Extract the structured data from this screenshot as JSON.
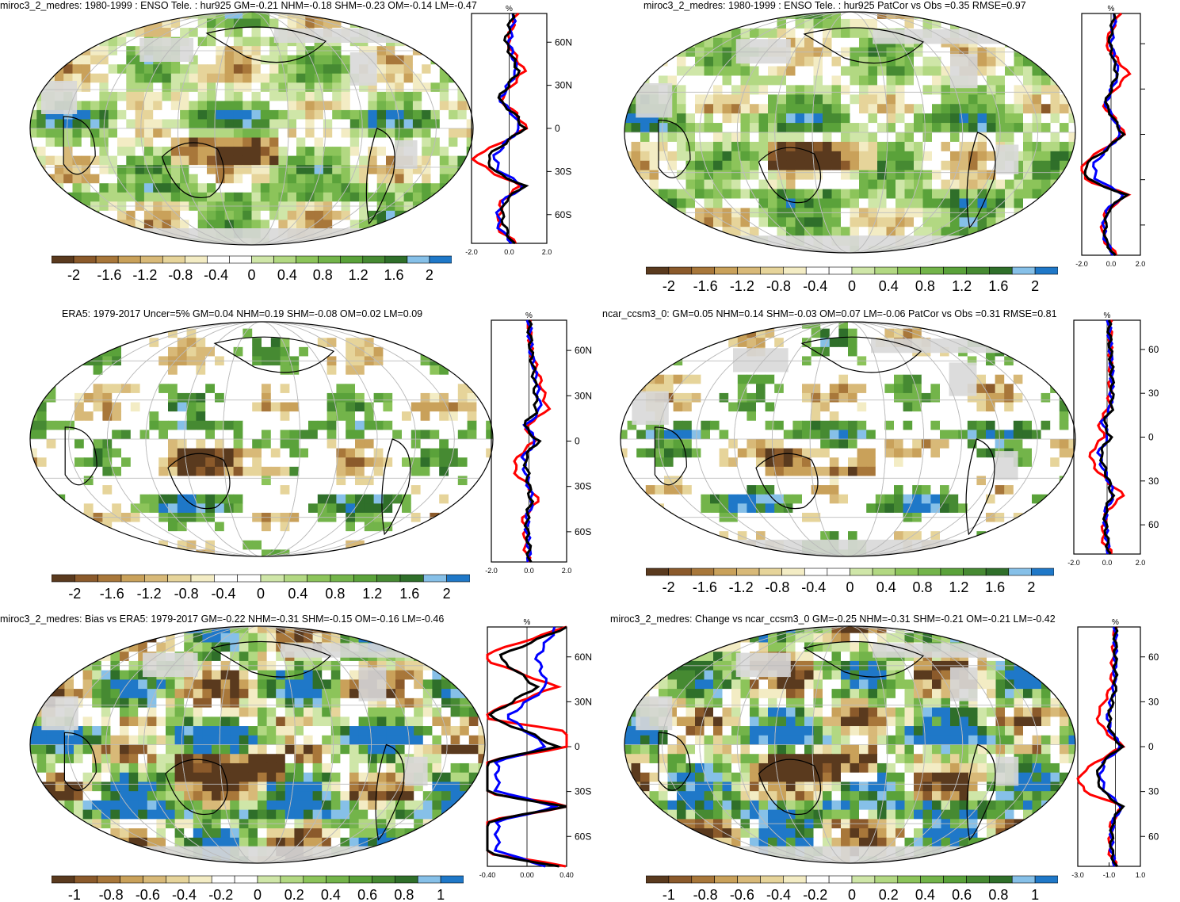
{
  "colors": {
    "brown_dark": "#5a3a1e",
    "brown": "#8b5a2b",
    "tan": "#c9a15a",
    "sand": "#e6d49a",
    "cream": "#f3ecc4",
    "white": "#ffffff",
    "light_green": "#cfe6a8",
    "green": "#8cc45a",
    "mid_green": "#5aa23a",
    "dark_green": "#2f6f2a",
    "light_blue": "#86c0e8",
    "blue": "#1f78c8",
    "land_missing": "#d8d8d8",
    "obs_line": "#000000",
    "model_line": "#ff0000",
    "other_line": "#0000ff"
  },
  "panels": [
    {
      "id": "p1",
      "title": "miroc3_2_medres: 1980-1999 : ENSO Tele. : hur925 GM=-0.21 NHM=-0.18 SHM=-0.23 OM=-0.14 LM=-0.47",
      "profile_unit": "%",
      "profile_xticks": [
        "-2.0",
        "0.0",
        "2.0"
      ],
      "profile_yticks": [
        "60N",
        "30N",
        "0",
        "30S",
        "60S"
      ],
      "colorbar_labels": [
        "-2",
        "-1.6",
        "-1.2",
        "-0.8",
        "-0.4",
        "0",
        "0.4",
        "0.8",
        "1.2",
        "1.6",
        "2"
      ]
    },
    {
      "id": "p2",
      "title": "miroc3_2_medres: 1980-1999 : ENSO Tele. : hur925 PatCor vs Obs =0.35 RMSE=0.97",
      "profile_unit": "%",
      "profile_xticks": [
        "-2.0",
        "0.0",
        "2.0"
      ],
      "profile_yticks": [
        "",
        "",
        "",
        "",
        ""
      ],
      "colorbar_labels": [
        "-2",
        "-1.6",
        "-1.2",
        "-0.8",
        "-0.4",
        "0",
        "0.4",
        "0.8",
        "1.2",
        "1.6",
        "2"
      ]
    },
    {
      "id": "p3",
      "title": "ERA5: 1979-2017 Uncer=5% GM=0.04 NHM=0.19 SHM=-0.08 OM=0.02 LM=0.09",
      "profile_unit": "%",
      "profile_xticks": [
        "-2.0",
        "0.0",
        "2.0"
      ],
      "profile_yticks": [
        "60N",
        "30N",
        "0",
        "30S",
        "60S"
      ],
      "colorbar_labels": [
        "-2",
        "-1.6",
        "-1.2",
        "-0.8",
        "-0.4",
        "0",
        "0.4",
        "0.8",
        "1.2",
        "1.6",
        "2"
      ]
    },
    {
      "id": "p4",
      "title": "ncar_ccsm3_0: GM=0.05 NHM=0.14 SHM=-0.03 OM=0.07 LM=-0.06 PatCor vs Obs =0.31 RMSE=0.81",
      "profile_unit": "%",
      "profile_xticks": [
        "-2.0",
        "0.0",
        "2.0"
      ],
      "profile_yticks": [
        "60",
        "30",
        "0",
        "30",
        "60"
      ],
      "colorbar_labels": [
        "-2",
        "-1.6",
        "-1.2",
        "-0.8",
        "-0.4",
        "0",
        "0.4",
        "0.8",
        "1.2",
        "1.6",
        "2"
      ]
    },
    {
      "id": "p5",
      "title": "miroc3_2_medres: Bias vs ERA5: 1979-2017 GM=-0.22 NHM=-0.31 SHM=-0.15 OM=-0.16 LM=-0.46",
      "profile_unit": "%",
      "profile_xticks": [
        "-0.40",
        "0.00",
        "0.40"
      ],
      "profile_yticks": [
        "60N",
        "30N",
        "0",
        "30S",
        "60S"
      ],
      "colorbar_labels": [
        "-1",
        "-0.8",
        "-0.6",
        "-0.4",
        "-0.2",
        "0",
        "0.2",
        "0.4",
        "0.6",
        "0.8",
        "1"
      ]
    },
    {
      "id": "p6",
      "title": "miroc3_2_medres: Change vs ncar_ccsm3_0 GM=-0.25 NHM=-0.31 SHM=-0.21 OM=-0.21 LM=-0.42",
      "profile_unit": "%",
      "profile_xticks": [
        "-3.0",
        "-1.0",
        "1.0"
      ],
      "profile_yticks": [
        "60",
        "30",
        "0",
        "30",
        "60"
      ],
      "colorbar_labels": [
        "-1",
        "-0.8",
        "-0.6",
        "-0.4",
        "-0.2",
        "0",
        "0.2",
        "0.4",
        "0.6",
        "0.8",
        "1"
      ]
    }
  ],
  "chart_data": [
    {
      "type": "heatmap",
      "title": "miroc3_2_medres: 1980-1999 : ENSO Tele. : hur925 GM=-0.21 NHM=-0.18 SHM=-0.23 OM=-0.14 LM=-0.47",
      "levels": [
        -2,
        -1.6,
        -1.2,
        -0.8,
        -0.4,
        0,
        0.4,
        0.8,
        1.2,
        1.6,
        2
      ],
      "zonal_profile": {
        "x_range": [
          -2,
          2
        ],
        "lat": [
          80,
          60,
          40,
          20,
          10,
          0,
          -10,
          -20,
          -30,
          -40,
          -50,
          -60,
          -70,
          -80
        ],
        "series": [
          {
            "values": [
              0.2,
              -0.2,
              0.5,
              -0.6,
              0.3,
              0.8,
              -0.2,
              -1.2,
              -0.8,
              0.8,
              -0.2,
              -0.4,
              -0.2,
              0.2
            ]
          },
          {
            "values": [
              0.4,
              -0.1,
              0.8,
              -0.5,
              0.4,
              0.9,
              -0.4,
              -2.0,
              -1.0,
              0.6,
              -0.4,
              -0.5,
              -0.6,
              0.4
            ]
          },
          {
            "values": [
              0.3,
              0.0,
              0.4,
              -0.5,
              0.2,
              0.6,
              -0.2,
              -0.8,
              -0.5,
              0.8,
              -0.3,
              -0.6,
              -0.5,
              0.2
            ]
          }
        ]
      }
    },
    {
      "type": "heatmap",
      "title": "miroc3_2_medres: 1980-1999 : ENSO Tele. : hur925 PatCor vs Obs =0.35 RMSE=0.97",
      "levels": [
        -2,
        -1.6,
        -1.2,
        -0.8,
        -0.4,
        0,
        0.4,
        0.8,
        1.2,
        1.6,
        2
      ],
      "zonal_profile": {
        "x_range": [
          -2,
          2
        ],
        "lat": [
          80,
          60,
          40,
          20,
          10,
          0,
          -10,
          -20,
          -30,
          -40,
          -50,
          -60,
          -70,
          -80
        ],
        "series": [
          {
            "values": [
              0.2,
              -0.1,
              0.4,
              -0.4,
              0.2,
              0.8,
              -0.3,
              -1.8,
              -1.6,
              1.0,
              -0.2,
              -0.4,
              -0.4,
              0.2
            ]
          },
          {
            "values": [
              0.6,
              -0.4,
              1.2,
              -0.6,
              0.3,
              0.9,
              -0.6,
              -2.0,
              -1.8,
              1.2,
              -0.3,
              -0.6,
              -0.5,
              0.4
            ]
          },
          {
            "values": [
              0.3,
              0.0,
              0.5,
              -0.4,
              0.2,
              0.7,
              -0.3,
              -1.2,
              -1.0,
              0.9,
              -0.3,
              -0.5,
              -0.4,
              0.2
            ]
          }
        ]
      }
    },
    {
      "type": "heatmap",
      "title": "ERA5: 1979-2017 Uncer=5% GM=0.04 NHM=0.19 SHM=-0.08 OM=0.02 LM=0.09",
      "levels": [
        -2,
        -1.6,
        -1.2,
        -0.8,
        -0.4,
        0,
        0.4,
        0.8,
        1.2,
        1.6,
        2
      ],
      "zonal_profile": {
        "x_range": [
          -2,
          2
        ],
        "lat": [
          80,
          60,
          40,
          20,
          10,
          0,
          -10,
          -20,
          -30,
          -40,
          -50,
          -60,
          -70,
          -80
        ],
        "series": [
          {
            "values": [
              0.0,
              0.1,
              0.3,
              0.4,
              -0.3,
              0.5,
              -0.2,
              -0.1,
              0.0,
              0.1,
              -0.1,
              -0.1,
              0.0,
              0.0
            ]
          },
          {
            "values": [
              0.0,
              0.1,
              0.6,
              1.0,
              -0.2,
              0.3,
              -0.6,
              -0.8,
              0.0,
              0.5,
              -0.3,
              -0.2,
              -0.2,
              0.0
            ]
          },
          {
            "values": [
              0.0,
              0.1,
              0.4,
              0.6,
              -0.2,
              0.4,
              -0.3,
              -0.2,
              0.0,
              0.2,
              -0.1,
              -0.1,
              0.0,
              0.0
            ]
          }
        ]
      }
    },
    {
      "type": "heatmap",
      "title": "ncar_ccsm3_0: GM=0.05 NHM=0.14 SHM=-0.03 OM=0.07 LM=-0.06 PatCor vs Obs =0.31 RMSE=0.81",
      "levels": [
        -2,
        -1.6,
        -1.2,
        -0.8,
        -0.4,
        0,
        0.4,
        0.8,
        1.2,
        1.6,
        2
      ],
      "zonal_profile": {
        "x_range": [
          -2,
          2
        ],
        "lat": [
          80,
          60,
          40,
          20,
          10,
          0,
          -10,
          -20,
          -30,
          -40,
          -50,
          -60,
          -70,
          -80
        ],
        "series": [
          {
            "values": [
              0.1,
              0.2,
              0.3,
              0.3,
              -0.2,
              0.2,
              -0.4,
              -0.2,
              0.1,
              0.3,
              -0.1,
              -0.1,
              0.0,
              0.1
            ]
          },
          {
            "values": [
              0.2,
              0.2,
              0.2,
              0.1,
              -0.5,
              -0.2,
              -1.0,
              -0.8,
              0.0,
              1.0,
              0.0,
              -0.2,
              -0.3,
              0.3
            ]
          },
          {
            "values": [
              0.1,
              0.2,
              0.3,
              0.2,
              -0.3,
              0.1,
              -0.5,
              -0.3,
              0.1,
              0.4,
              -0.1,
              -0.1,
              0.0,
              0.1
            ]
          }
        ]
      }
    },
    {
      "type": "heatmap",
      "title": "miroc3_2_medres: Bias vs ERA5: 1979-2017 GM=-0.22 NHM=-0.31 SHM=-0.15 OM=-0.16 LM=-0.46",
      "levels": [
        -1,
        -0.8,
        -0.6,
        -0.4,
        -0.2,
        0,
        0.2,
        0.4,
        0.6,
        0.8,
        1
      ],
      "zonal_profile": {
        "x_range": [
          -0.4,
          0.4
        ],
        "lat": [
          80,
          60,
          40,
          20,
          10,
          0,
          -10,
          -20,
          -30,
          -40,
          -50,
          -60,
          -70,
          -80
        ],
        "series": [
          {
            "values": [
              0.4,
              -0.3,
              0.1,
              -0.4,
              0.0,
              0.3,
              -0.4,
              -0.5,
              -0.5,
              0.4,
              -0.4,
              -0.5,
              -0.5,
              0.3
            ]
          },
          {
            "values": [
              0.4,
              -0.5,
              0.3,
              -0.5,
              0.4,
              0.5,
              -0.5,
              -0.5,
              -0.5,
              0.5,
              -0.5,
              -0.5,
              -0.5,
              0.4
            ]
          },
          {
            "values": [
              0.3,
              0.1,
              0.2,
              -0.2,
              0.0,
              0.2,
              -0.3,
              -0.3,
              -0.3,
              0.3,
              -0.3,
              -0.3,
              -0.3,
              0.2
            ]
          }
        ]
      }
    },
    {
      "type": "heatmap",
      "title": "miroc3_2_medres: Change vs ncar_ccsm3_0 GM=-0.25 NHM=-0.31 SHM=-0.21 OM=-0.21 LM=-0.42",
      "levels": [
        -1,
        -0.8,
        -0.6,
        -0.4,
        -0.2,
        0,
        0.2,
        0.4,
        0.6,
        0.8,
        1
      ],
      "zonal_profile": {
        "x_range": [
          -3,
          2
        ],
        "lat": [
          80,
          60,
          40,
          20,
          10,
          0,
          -10,
          -20,
          -30,
          -40,
          -50,
          -60,
          -70,
          -80
        ],
        "series": [
          {
            "values": [
              0.0,
              0.0,
              0.0,
              -0.5,
              -0.4,
              0.5,
              -1.0,
              -1.5,
              -1.0,
              0.5,
              -0.2,
              -0.3,
              -0.3,
              0.0
            ]
          },
          {
            "values": [
              0.0,
              -0.2,
              -0.3,
              -1.5,
              -0.8,
              0.6,
              -1.5,
              -3.0,
              -2.5,
              0.6,
              -0.3,
              -0.4,
              -0.5,
              0.1
            ]
          },
          {
            "values": [
              0.0,
              0.0,
              -0.1,
              -0.6,
              -0.4,
              0.5,
              -0.9,
              -1.2,
              -0.8,
              0.5,
              -0.2,
              -0.3,
              -0.3,
              0.0
            ]
          }
        ]
      }
    }
  ]
}
